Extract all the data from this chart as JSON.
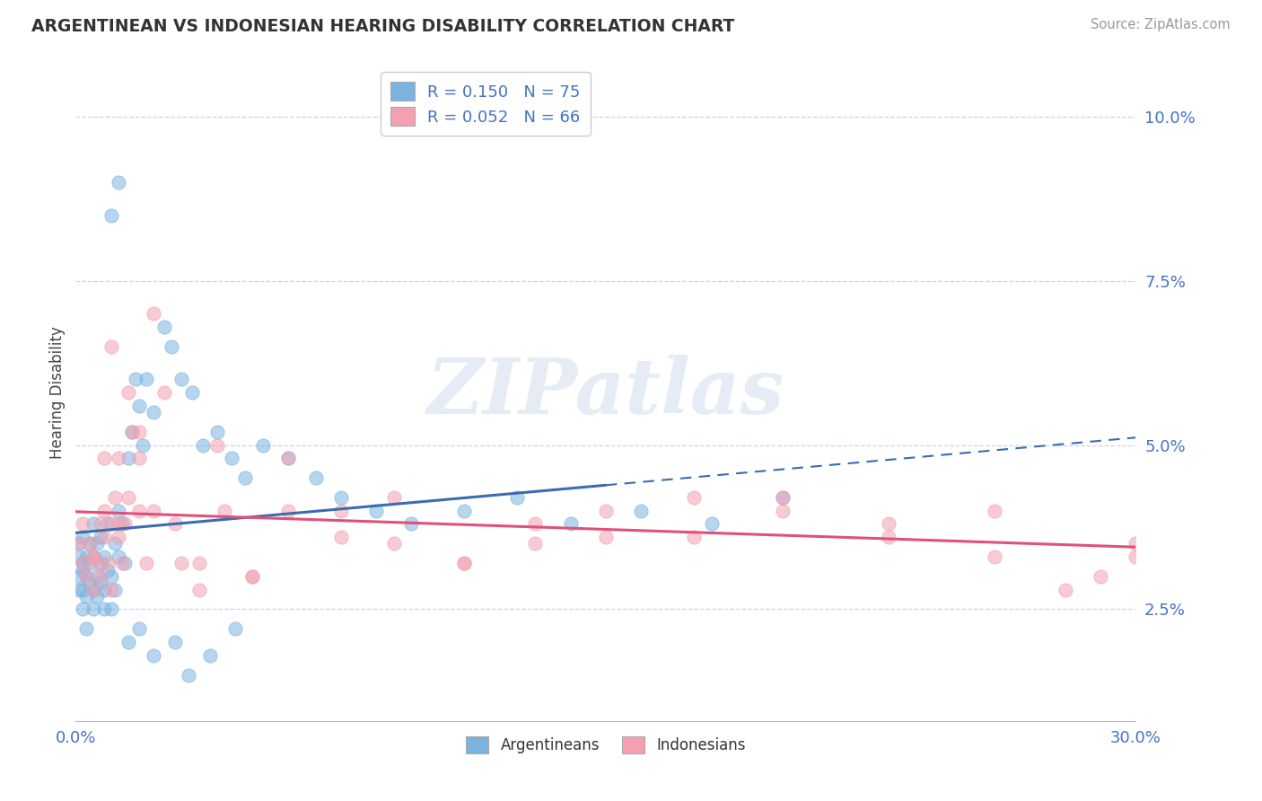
{
  "title": "ARGENTINEAN VS INDONESIAN HEARING DISABILITY CORRELATION CHART",
  "source": "Source: ZipAtlas.com",
  "ylabel": "Hearing Disability",
  "xlim": [
    0.0,
    0.3
  ],
  "ylim": [
    0.008,
    0.108
  ],
  "yticks": [
    0.025,
    0.05,
    0.075,
    0.1
  ],
  "ytick_labels": [
    "2.5%",
    "5.0%",
    "7.5%",
    "10.0%"
  ],
  "xticks": [
    0.0,
    0.05,
    0.1,
    0.15,
    0.2,
    0.25,
    0.3
  ],
  "xtick_labels": [
    "0.0%",
    "",
    "",
    "",
    "",
    "",
    "30.0%"
  ],
  "argentinean_color": "#7ab3e0",
  "indonesian_color": "#f4a0b0",
  "trend_argentinean_color": "#3a6cb0",
  "trend_indonesian_color": "#e0507a",
  "R_argentinean": 0.15,
  "N_argentinean": 75,
  "R_indonesian": 0.052,
  "N_indonesian": 66,
  "argentinean_x": [
    0.001,
    0.001,
    0.001,
    0.001,
    0.002,
    0.002,
    0.002,
    0.002,
    0.002,
    0.003,
    0.003,
    0.003,
    0.003,
    0.004,
    0.004,
    0.004,
    0.005,
    0.005,
    0.005,
    0.005,
    0.006,
    0.006,
    0.006,
    0.007,
    0.007,
    0.007,
    0.008,
    0.008,
    0.008,
    0.009,
    0.009,
    0.01,
    0.01,
    0.011,
    0.011,
    0.012,
    0.012,
    0.013,
    0.014,
    0.015,
    0.016,
    0.017,
    0.018,
    0.019,
    0.02,
    0.022,
    0.025,
    0.027,
    0.03,
    0.033,
    0.036,
    0.04,
    0.044,
    0.048,
    0.053,
    0.06,
    0.068,
    0.075,
    0.085,
    0.095,
    0.11,
    0.125,
    0.14,
    0.16,
    0.18,
    0.2,
    0.01,
    0.012,
    0.015,
    0.018,
    0.022,
    0.028,
    0.032,
    0.038,
    0.045
  ],
  "argentinean_y": [
    0.033,
    0.03,
    0.028,
    0.035,
    0.032,
    0.028,
    0.025,
    0.031,
    0.036,
    0.03,
    0.027,
    0.033,
    0.022,
    0.029,
    0.035,
    0.032,
    0.028,
    0.033,
    0.025,
    0.038,
    0.03,
    0.027,
    0.035,
    0.032,
    0.029,
    0.036,
    0.028,
    0.033,
    0.025,
    0.031,
    0.038,
    0.03,
    0.025,
    0.035,
    0.028,
    0.033,
    0.04,
    0.038,
    0.032,
    0.048,
    0.052,
    0.06,
    0.056,
    0.05,
    0.06,
    0.055,
    0.068,
    0.065,
    0.06,
    0.058,
    0.05,
    0.052,
    0.048,
    0.045,
    0.05,
    0.048,
    0.045,
    0.042,
    0.04,
    0.038,
    0.04,
    0.042,
    0.038,
    0.04,
    0.038,
    0.042,
    0.085,
    0.09,
    0.02,
    0.022,
    0.018,
    0.02,
    0.015,
    0.018,
    0.022
  ],
  "indonesian_x": [
    0.001,
    0.002,
    0.002,
    0.003,
    0.004,
    0.005,
    0.005,
    0.006,
    0.007,
    0.007,
    0.008,
    0.009,
    0.01,
    0.01,
    0.011,
    0.012,
    0.013,
    0.014,
    0.015,
    0.016,
    0.018,
    0.02,
    0.022,
    0.025,
    0.03,
    0.035,
    0.04,
    0.05,
    0.06,
    0.075,
    0.09,
    0.11,
    0.13,
    0.15,
    0.175,
    0.2,
    0.23,
    0.26,
    0.29,
    0.3,
    0.008,
    0.01,
    0.012,
    0.015,
    0.018,
    0.022,
    0.028,
    0.035,
    0.042,
    0.05,
    0.06,
    0.075,
    0.09,
    0.11,
    0.13,
    0.15,
    0.175,
    0.2,
    0.23,
    0.26,
    0.28,
    0.3,
    0.005,
    0.008,
    0.012,
    0.018
  ],
  "indonesian_y": [
    0.035,
    0.032,
    0.038,
    0.03,
    0.035,
    0.028,
    0.033,
    0.032,
    0.038,
    0.03,
    0.036,
    0.032,
    0.038,
    0.028,
    0.042,
    0.048,
    0.032,
    0.038,
    0.042,
    0.052,
    0.048,
    0.032,
    0.04,
    0.058,
    0.032,
    0.028,
    0.05,
    0.03,
    0.048,
    0.04,
    0.042,
    0.032,
    0.035,
    0.04,
    0.036,
    0.042,
    0.036,
    0.033,
    0.03,
    0.035,
    0.048,
    0.065,
    0.038,
    0.058,
    0.052,
    0.07,
    0.038,
    0.032,
    0.04,
    0.03,
    0.04,
    0.036,
    0.035,
    0.032,
    0.038,
    0.036,
    0.042,
    0.04,
    0.038,
    0.04,
    0.028,
    0.033,
    0.033,
    0.04,
    0.036,
    0.04
  ]
}
